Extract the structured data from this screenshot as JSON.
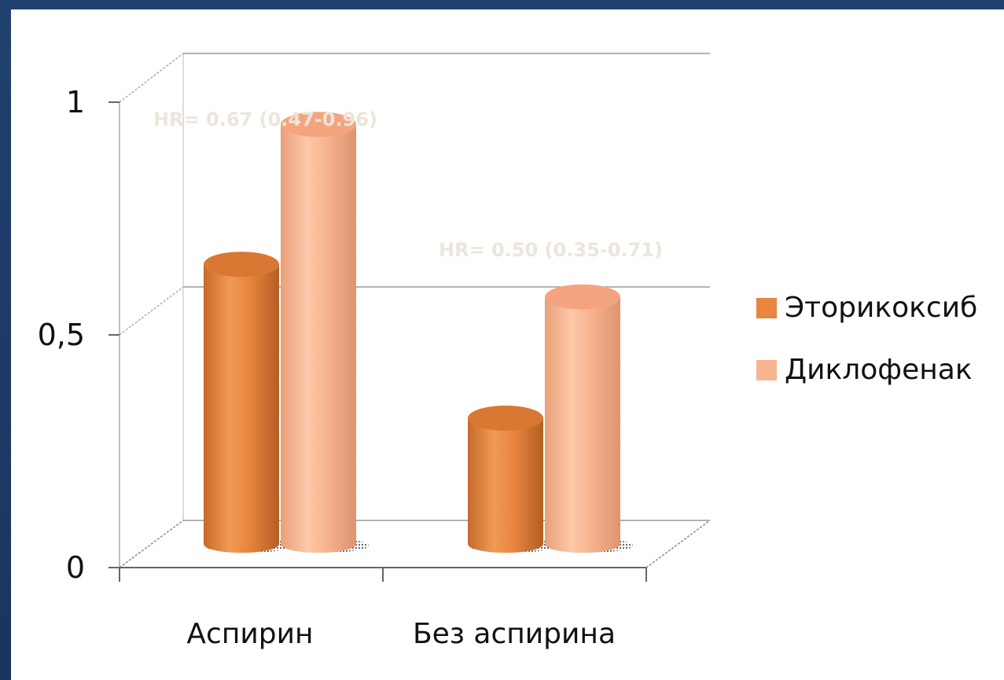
{
  "chart_data": {
    "type": "bar",
    "style": "3d-cylinder",
    "categories": [
      "Аспирин",
      "Без аспирина"
    ],
    "series": [
      {
        "name": "Эторикоксиб",
        "values": [
          0.6,
          0.27
        ],
        "color": "#e8853f"
      },
      {
        "name": "Диклофенак",
        "values": [
          0.9,
          0.53
        ],
        "color": "#f7b48f"
      }
    ],
    "ylim": [
      0,
      1
    ],
    "yticks": [
      "0",
      "0,5",
      "1"
    ],
    "yticks_values": [
      0,
      0.5,
      1
    ],
    "grid": true,
    "legend_position": "right",
    "annotations": [
      "HR= 0.67 (0.47-0.96)",
      "HR= 0.50 (0.35-0.71)"
    ]
  },
  "colors": {
    "background_frame": "#1c3a66",
    "panel": "#ffffff",
    "annotation_text": "#ece5da"
  }
}
